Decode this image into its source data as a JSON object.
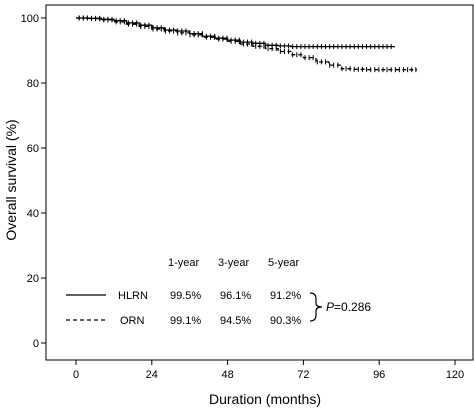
{
  "chart_data": {
    "type": "line",
    "title": "",
    "xlabel": "Duration (months)",
    "ylabel": "Overall survival (%)",
    "xlim": [
      0,
      120
    ],
    "ylim": [
      0,
      100
    ],
    "xticks": [
      0,
      24,
      48,
      72,
      96,
      120
    ],
    "yticks": [
      0,
      20,
      40,
      60,
      80,
      100
    ],
    "grid": false,
    "series": [
      {
        "name": "HLRN",
        "style": "solid",
        "color": "#000000",
        "x": [
          0,
          4,
          8,
          12,
          16,
          20,
          24,
          28,
          32,
          36,
          40,
          44,
          48,
          52,
          56,
          60,
          64,
          68,
          72,
          78,
          84,
          90,
          96,
          101
        ],
        "y": [
          100,
          99.9,
          99.6,
          99.2,
          98.5,
          97.8,
          97.0,
          96.3,
          96.0,
          95.2,
          94.4,
          93.8,
          93.2,
          92.6,
          92.2,
          91.6,
          91.4,
          91.2,
          91.2,
          91.2,
          91.2,
          91.2,
          91.2,
          91.2
        ]
      },
      {
        "name": "ORN",
        "style": "dashed",
        "color": "#000000",
        "x": [
          0,
          4,
          8,
          12,
          16,
          20,
          24,
          28,
          32,
          36,
          40,
          44,
          48,
          52,
          56,
          60,
          64,
          68,
          72,
          76,
          80,
          84,
          88,
          92,
          96,
          100,
          105,
          108
        ],
        "y": [
          100,
          99.8,
          99.4,
          98.8,
          98.1,
          97.4,
          96.6,
          96.0,
          95.4,
          94.8,
          94.1,
          93.5,
          92.8,
          92.0,
          91.3,
          90.6,
          89.7,
          88.7,
          87.8,
          86.5,
          85.5,
          84.4,
          84.2,
          84.1,
          84.1,
          84.1,
          84.1,
          84.1
        ]
      }
    ],
    "table": {
      "headers": [
        "1-year",
        "3-year",
        "5-year"
      ],
      "rows": [
        {
          "label": "HLRN",
          "values": [
            "99.5%",
            "96.1%",
            "91.2%"
          ]
        },
        {
          "label": "ORN",
          "values": [
            "99.1%",
            "94.5%",
            "90.3%"
          ]
        }
      ],
      "p_label": "P",
      "p_value": "=0.286"
    }
  }
}
